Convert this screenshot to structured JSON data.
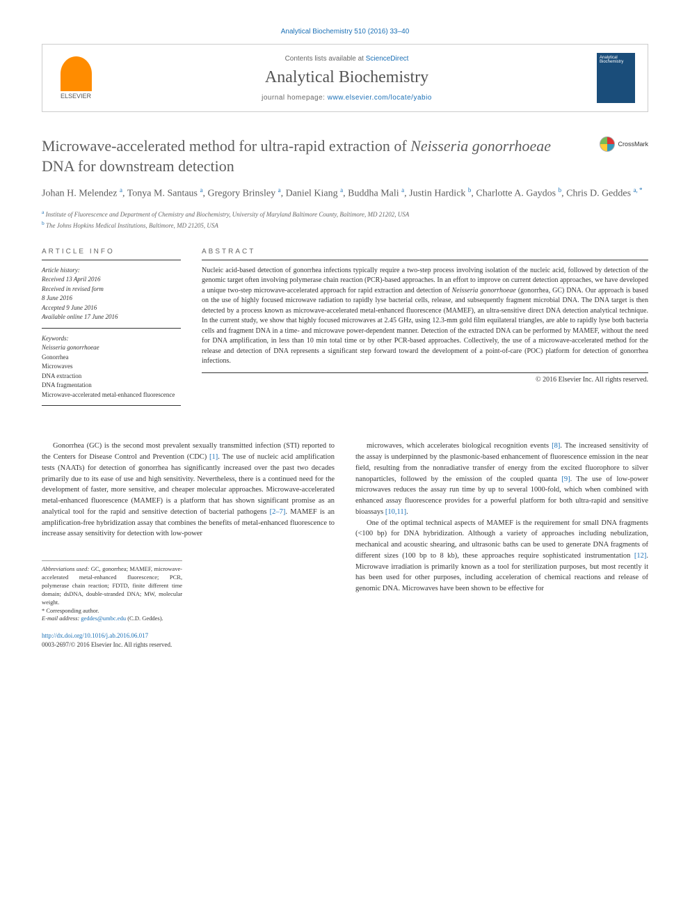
{
  "journal_ref": "Analytical Biochemistry 510 (2016) 33–40",
  "header": {
    "contents_prefix": "Contents lists available at ",
    "contents_link": "ScienceDirect",
    "journal_name": "Analytical Biochemistry",
    "homepage_prefix": "journal homepage: ",
    "homepage_url": "www.elsevier.com/locate/yabio",
    "elsevier_label": "ELSEVIER",
    "cover_label": "Analytical Biochemistry"
  },
  "title_parts": {
    "pre": "Microwave-accelerated method for ultra-rapid extraction of ",
    "italic": "Neisseria gonorrhoeae",
    "post": " DNA for downstream detection"
  },
  "crossmark_label": "CrossMark",
  "authors_html": "Johan H. Melendez <sup>a</sup>, Tonya M. Santaus <sup>a</sup>, Gregory Brinsley <sup>a</sup>, Daniel Kiang <sup>a</sup>, Buddha Mali <sup>a</sup>, Justin Hardick <sup>b</sup>, Charlotte A. Gaydos <sup>b</sup>, Chris D. Geddes <sup>a, *</sup>",
  "affiliations": [
    {
      "sup": "a",
      "text": " Institute of Fluorescence and Department of Chemistry and Biochemistry, University of Maryland Baltimore County, Baltimore, MD 21202, USA"
    },
    {
      "sup": "b",
      "text": " The Johns Hopkins Medical Institutions, Baltimore, MD 21205, USA"
    }
  ],
  "article_info_header": "ARTICLE INFO",
  "history": {
    "label": "Article history:",
    "lines": [
      "Received 13 April 2016",
      "Received in revised form",
      "8 June 2016",
      "Accepted 9 June 2016",
      "Available online 17 June 2016"
    ]
  },
  "keywords": {
    "label": "Keywords:",
    "items": [
      {
        "text": "Neisseria gonorrhoeae",
        "italic": true
      },
      {
        "text": "Gonorrhea",
        "italic": false
      },
      {
        "text": "Microwaves",
        "italic": false
      },
      {
        "text": "DNA extraction",
        "italic": false
      },
      {
        "text": "DNA fragmentation",
        "italic": false
      },
      {
        "text": "Microwave-accelerated metal-enhanced fluorescence",
        "italic": false
      }
    ]
  },
  "abstract_header": "ABSTRACT",
  "abstract_html": "Nucleic acid-based detection of gonorrhea infections typically require a two-step process involving isolation of the nucleic acid, followed by detection of the genomic target often involving polymerase chain reaction (PCR)-based approaches. In an effort to improve on current detection approaches, we have developed a unique two-step microwave-accelerated approach for rapid extraction and detection of <span class=\"italic\">Neisseria gonorrhoeae</span> (gonorrhea, GC) DNA. Our approach is based on the use of highly focused microwave radiation to rapidly lyse bacterial cells, release, and subsequently fragment microbial DNA. The DNA target is then detected by a process known as microwave-accelerated metal-enhanced fluorescence (MAMEF), an ultra-sensitive direct DNA detection analytical technique. In the current study, we show that highly focused microwaves at 2.45 GHz, using 12.3-mm gold film equilateral triangles, are able to rapidly lyse both bacteria cells and fragment DNA in a time- and microwave power-dependent manner. Detection of the extracted DNA can be performed by MAMEF, without the need for DNA amplification, in less than 10 min total time or by other PCR-based approaches. Collectively, the use of a microwave-accelerated method for the release and detection of DNA represents a significant step forward toward the development of a point-of-care (POC) platform for detection of gonorrhea infections.",
  "copyright": "© 2016 Elsevier Inc. All rights reserved.",
  "body": {
    "left": "Gonorrhea (GC) is the second most prevalent sexually transmitted infection (STI) reported to the Centers for Disease Control and Prevention (CDC) <span class=\"ref-link\">[1]</span>. The use of nucleic acid amplification tests (NAATs) for detection of gonorrhea has significantly increased over the past two decades primarily due to its ease of use and high sensitivity. Nevertheless, there is a continued need for the development of faster, more sensitive, and cheaper molecular approaches. Microwave-accelerated metal-enhanced fluorescence (MAMEF) is a platform that has shown significant promise as an analytical tool for the rapid and sensitive detection of bacterial pathogens <span class=\"ref-link\">[2–7]</span>. MAMEF is an amplification-free hybridization assay that combines the benefits of metal-enhanced fluorescence to increase assay sensitivity for detection with low-power",
    "right_p1": "microwaves, which accelerates biological recognition events <span class=\"ref-link\">[8]</span>. The increased sensitivity of the assay is underpinned by the plasmonic-based enhancement of fluorescence emission in the near field, resulting from the nonradiative transfer of energy from the excited fluorophore to silver nanoparticles, followed by the emission of the coupled quanta <span class=\"ref-link\">[9]</span>. The use of low-power microwaves reduces the assay run time by up to several 1000-fold, which when combined with enhanced assay fluorescence provides for a powerful platform for both ultra-rapid and sensitive bioassays <span class=\"ref-link\">[10,11]</span>.",
    "right_p2": "One of the optimal technical aspects of MAMEF is the requirement for small DNA fragments (<100 bp) for DNA hybridization. Although a variety of approaches including nebulization, mechanical and acoustic shearing, and ultrasonic baths can be used to generate DNA fragments of different sizes (100 bp to 8 kb), these approaches require sophisticated instrumentation <span class=\"ref-link\">[12]</span>. Microwave irradiation is primarily known as a tool for sterilization purposes, but most recently it has been used for other purposes, including acceleration of chemical reactions and release of genomic DNA. Microwaves have been shown to be effective for"
  },
  "footnotes": {
    "abbrev_label": "Abbreviations used:",
    "abbrev_text": " GC, gonorrhea; MAMEF, microwave-accelerated metal-enhanced fluorescence; PCR, polymerase chain reaction; FDTD, finite different time domain; dsDNA, double-stranded DNA; MW, molecular weight.",
    "corresponding": "* Corresponding author.",
    "email_label": "E-mail address: ",
    "email": "geddes@umbc.edu",
    "email_suffix": " (C.D. Geddes)."
  },
  "bottom": {
    "doi": "http://dx.doi.org/10.1016/j.ab.2016.06.017",
    "issn_line": "0003-2697/© 2016 Elsevier Inc. All rights reserved."
  },
  "colors": {
    "link": "#1a6fb5",
    "text": "#333333",
    "heading": "#5e5e5e",
    "elsevier_orange": "#ff8c00",
    "cover_blue": "#1a4d7a"
  }
}
